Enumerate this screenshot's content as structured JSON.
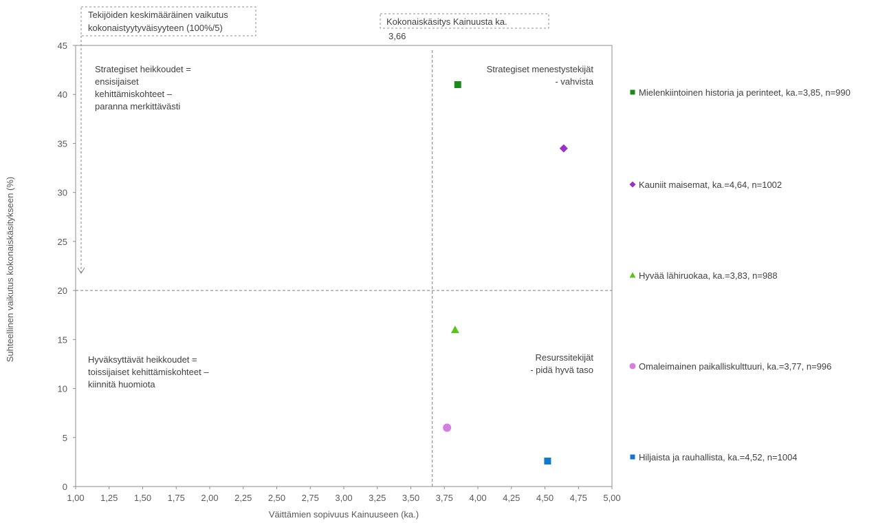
{
  "chart_data": {
    "type": "scatter",
    "xlabel": "Väittämien sopivuus Kainuuseen (ka.)",
    "ylabel": "Suhteellinen vaikutus kokonaiskäsitykseen (%)",
    "xlim": [
      1.0,
      5.0
    ],
    "ylim": [
      0,
      45
    ],
    "x_ticks": [
      "1,00",
      "1,25",
      "1,50",
      "1,75",
      "2,00",
      "2,25",
      "2,50",
      "2,75",
      "3,00",
      "3,25",
      "3,50",
      "3,75",
      "4,00",
      "4,25",
      "4,50",
      "4,75",
      "5,00"
    ],
    "y_ticks": [
      "0",
      "5",
      "10",
      "15",
      "20",
      "25",
      "30",
      "35",
      "40",
      "45"
    ],
    "grid": false,
    "legend_position": "right",
    "reference_lines": {
      "vertical_x": 3.66,
      "horizontal_y": 20,
      "vertical_label": "Kokonaiskäsitys Kainuusta ka. 3,66",
      "horizontal_label": "Tekijöiden keskimääräinen vaikutus kokonaistyytyväisyyteen (100%/5)"
    },
    "quadrants": {
      "top_left": [
        "Strategiset heikkoudet =",
        "ensisijaiset",
        "kehittämiskohteet –",
        "paranna  merkittävästi"
      ],
      "top_right": [
        "Strategiset menestystekijät",
        "- vahvista"
      ],
      "bottom_left": [
        "Hyväksyttävät heikkoudet =",
        "toissijaiset kehittämiskohteet –",
        "kiinnitä huomiota"
      ],
      "bottom_right": [
        "Resurssitekijät",
        "- pidä hyvä taso"
      ]
    },
    "series": [
      {
        "name": "Mielenkiintoinen historia ja perinteet, ka.=3,85, n=990",
        "x": 3.85,
        "y": 41,
        "marker": "square",
        "color": "#1a8a1a"
      },
      {
        "name": "Kauniit maisemat, ka.=4,64, n=1002",
        "x": 4.64,
        "y": 34.5,
        "marker": "diamond",
        "color": "#9b30c9"
      },
      {
        "name": "Hyvää lähiruokaa, ka.=3,83, n=988",
        "x": 3.83,
        "y": 16,
        "marker": "triangle",
        "color": "#5ac31e"
      },
      {
        "name": "Omaleimainen paikalliskulttuuri, ka.=3,77, n=996",
        "x": 3.77,
        "y": 6,
        "marker": "circle",
        "color": "#d47ee0"
      },
      {
        "name": "Hiljaista ja rauhallista, ka.=4,52, n=1004",
        "x": 4.52,
        "y": 2.6,
        "marker": "square",
        "color": "#1177d0"
      }
    ]
  }
}
